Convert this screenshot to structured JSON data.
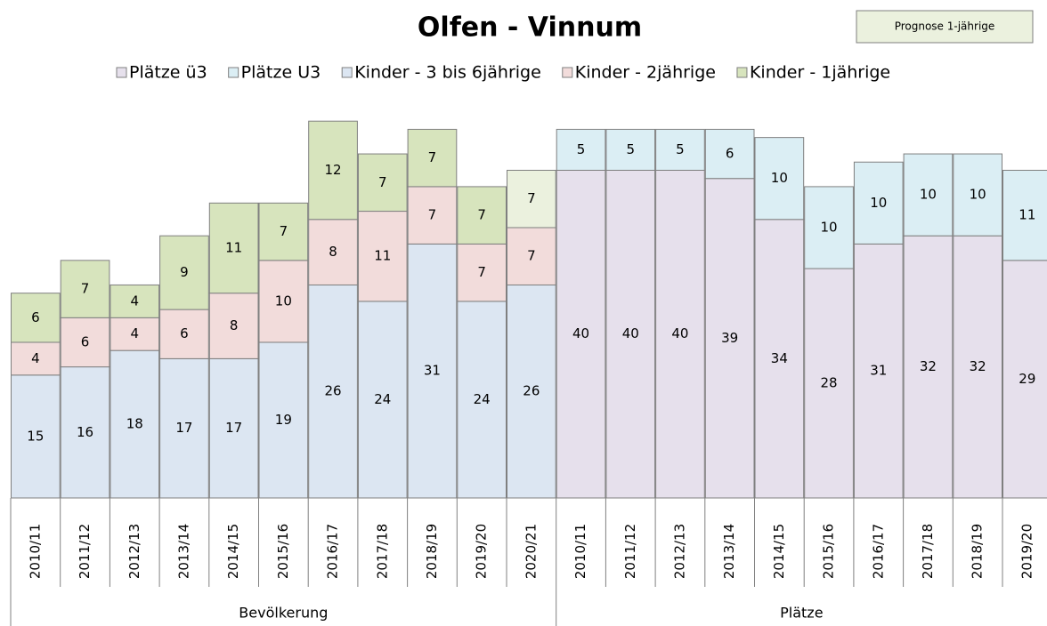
{
  "chart_data": {
    "type": "stacked-bar",
    "title": "Olfen - Vinnum",
    "groups": [
      {
        "name": "Bevölkerung",
        "categories": [
          "2010/11",
          "2011/12",
          "2012/13",
          "2013/14",
          "2014/15",
          "2015/16",
          "2016/17",
          "2017/18",
          "2018/19",
          "2019/20",
          "2020/21"
        ]
      },
      {
        "name": "Plätze",
        "categories": [
          "2010/11",
          "2011/12",
          "2012/13",
          "2013/14",
          "2014/15",
          "2015/16",
          "2016/17",
          "2017/18",
          "2018/19",
          "2019/20"
        ]
      }
    ],
    "series": [
      {
        "name": "Plätze ü3",
        "color": "#e6e0ec",
        "values": [
          null,
          null,
          null,
          null,
          null,
          null,
          null,
          null,
          null,
          null,
          null,
          40,
          40,
          40,
          39,
          34,
          28,
          31,
          32,
          32,
          29
        ]
      },
      {
        "name": "Plätze U3",
        "color": "#dbeef4",
        "values": [
          null,
          null,
          null,
          null,
          null,
          null,
          null,
          null,
          null,
          null,
          null,
          5,
          5,
          5,
          6,
          10,
          10,
          10,
          10,
          10,
          11
        ]
      },
      {
        "name": "Kinder - 3 bis 6jährige",
        "color": "#dce6f2",
        "values": [
          15,
          16,
          18,
          17,
          17,
          19,
          26,
          24,
          31,
          24,
          26,
          null,
          null,
          null,
          null,
          null,
          null,
          null,
          null,
          null,
          null
        ]
      },
      {
        "name": "Kinder - 2jährige",
        "color": "#f2dcdb",
        "values": [
          4,
          6,
          4,
          6,
          8,
          10,
          8,
          11,
          7,
          7,
          7,
          null,
          null,
          null,
          null,
          null,
          null,
          null,
          null,
          null,
          null
        ]
      },
      {
        "name": "Kinder - 1jährige",
        "color": "#d7e4bd",
        "values": [
          6,
          7,
          4,
          9,
          11,
          7,
          12,
          7,
          7,
          7,
          null,
          null,
          null,
          null,
          null,
          null,
          null,
          null,
          null,
          null,
          null
        ]
      },
      {
        "name": "Prognose 1-jährige",
        "color": "#ebf1de",
        "in_legend": false,
        "values": [
          null,
          null,
          null,
          null,
          null,
          null,
          null,
          null,
          null,
          null,
          7,
          null,
          null,
          null,
          null,
          null,
          null,
          null,
          null,
          null,
          null
        ]
      }
    ],
    "ylim": [
      0,
      47
    ]
  }
}
